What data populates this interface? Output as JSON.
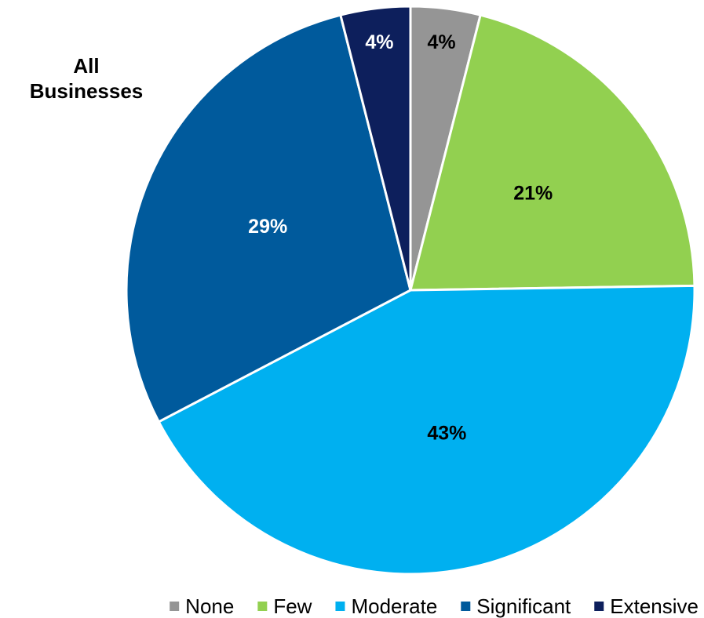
{
  "chart_data": {
    "type": "pie",
    "title_lines": [
      "All",
      "Businesses"
    ],
    "slices": [
      {
        "name": "None",
        "value": 4,
        "label": "4%",
        "color": "#959595",
        "label_color": "#000000"
      },
      {
        "name": "Few",
        "value": 21,
        "label": "21%",
        "color": "#92D050",
        "label_color": "#000000"
      },
      {
        "name": "Moderate",
        "value": 43,
        "label": "43%",
        "color": "#00B0F0",
        "label_color": "#000000"
      },
      {
        "name": "Significant",
        "value": 29,
        "label": "29%",
        "color": "#005A9C",
        "label_color": "#FFFFFF"
      },
      {
        "name": "Extensive",
        "value": 4,
        "label": "4%",
        "color": "#0D1F5C",
        "label_color": "#FFFFFF"
      }
    ],
    "legend_position": "bottom",
    "start_angle": "12 o'clock, clockwise"
  }
}
